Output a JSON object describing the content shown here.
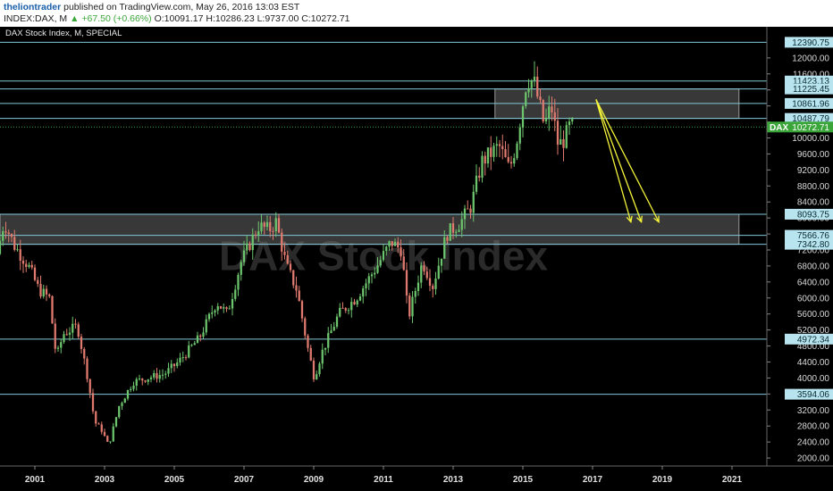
{
  "header": {
    "author": "theliontrader",
    "published_text": "published on TradingView.com, May 26, 2016 13:03 EST",
    "symbol_text": "INDEX:DAX, M",
    "change_text": "▲ +67.50 (+0.66%)",
    "ohlc_text": "O:10091.17 H:10286.23 L:9737.00 C:10272.71"
  },
  "chart_title": "DAX Stock Index, M, SPECIAL",
  "watermark": "DAX Stock Index",
  "colors": {
    "up": "#6cc46c",
    "down": "#e07a6e",
    "level_line": "#7fc7d6",
    "label_bg": "#b7e4ee",
    "zone_fill": "#7c7c7c",
    "current_bg": "#3aa63a",
    "arrow": "#f5f53a"
  },
  "chart_data": {
    "type": "candlestick",
    "title": "DAX Stock Index, M, SPECIAL",
    "x_range": [
      2000.0,
      2022.0
    ],
    "ylim": [
      1800,
      12600
    ],
    "y_ticks": [
      2000,
      2400,
      2800,
      3200,
      3600,
      4000,
      4400,
      4800,
      5200,
      5600,
      6000,
      6400,
      6800,
      7200,
      7600,
      8000,
      8400,
      8800,
      9200,
      9600,
      10000,
      10400,
      10800,
      11200,
      11600,
      12000
    ],
    "x_ticks": [
      {
        "value": 2001,
        "label": "2001"
      },
      {
        "value": 2003,
        "label": "2003"
      },
      {
        "value": 2005,
        "label": "2005"
      },
      {
        "value": 2007,
        "label": "2007"
      },
      {
        "value": 2009,
        "label": "2009"
      },
      {
        "value": 2011,
        "label": "2011"
      },
      {
        "value": 2013,
        "label": "2013"
      },
      {
        "value": 2015,
        "label": "2015"
      },
      {
        "value": 2017,
        "label": "2017"
      },
      {
        "value": 2019,
        "label": "2019"
      },
      {
        "value": 2021,
        "label": "2021"
      }
    ],
    "waypoints": [
      [
        2000.0,
        7100
      ],
      [
        2000.2,
        7900
      ],
      [
        2000.5,
        7300
      ],
      [
        2000.9,
        6800
      ],
      [
        2001.2,
        6200
      ],
      [
        2001.5,
        6000
      ],
      [
        2001.7,
        4500
      ],
      [
        2001.9,
        5100
      ],
      [
        2002.3,
        5300
      ],
      [
        2002.6,
        4000
      ],
      [
        2002.8,
        2900
      ],
      [
        2003.0,
        2700
      ],
      [
        2003.2,
        2300
      ],
      [
        2003.5,
        3300
      ],
      [
        2003.9,
        3900
      ],
      [
        2004.3,
        4000
      ],
      [
        2004.8,
        4100
      ],
      [
        2005.2,
        4400
      ],
      [
        2005.8,
        5000
      ],
      [
        2006.3,
        5900
      ],
      [
        2006.6,
        5600
      ],
      [
        2007.0,
        6900
      ],
      [
        2007.5,
        7800
      ],
      [
        2007.8,
        7700
      ],
      [
        2008.0,
        7900
      ],
      [
        2008.3,
        6800
      ],
      [
        2008.6,
        6200
      ],
      [
        2008.9,
        4800
      ],
      [
        2009.1,
        4000
      ],
      [
        2009.3,
        4600
      ],
      [
        2009.8,
        5600
      ],
      [
        2010.3,
        6000
      ],
      [
        2010.9,
        6800
      ],
      [
        2011.3,
        7400
      ],
      [
        2011.6,
        7200
      ],
      [
        2011.8,
        5500
      ],
      [
        2012.2,
        6900
      ],
      [
        2012.5,
        6300
      ],
      [
        2012.9,
        7600
      ],
      [
        2013.3,
        7900
      ],
      [
        2013.6,
        8300
      ],
      [
        2013.9,
        9400
      ],
      [
        2014.4,
        9800
      ],
      [
        2014.7,
        9200
      ],
      [
        2014.9,
        9900
      ],
      [
        2015.2,
        11500
      ],
      [
        2015.4,
        11400
      ],
      [
        2015.7,
        10300
      ],
      [
        2015.9,
        10800
      ],
      [
        2016.1,
        9800
      ],
      [
        2016.3,
        10000
      ],
      [
        2016.42,
        10272.71
      ]
    ],
    "levels": [
      {
        "value": 12390.75,
        "label": "12390.75"
      },
      {
        "value": 11423.13,
        "label": "11423.13"
      },
      {
        "value": 11225.45,
        "label": "11225.45"
      },
      {
        "value": 10861.96,
        "label": "10861.96"
      },
      {
        "value": 10487.79,
        "label": "10487.79"
      },
      {
        "value": 8093.75,
        "label": "8093.75"
      },
      {
        "value": 7566.76,
        "label": "7566.76"
      },
      {
        "value": 7342.8,
        "label": "7342.80"
      },
      {
        "value": 4972.34,
        "label": "4972.34"
      },
      {
        "value": 3594.06,
        "label": "3594.06"
      }
    ],
    "zones": [
      {
        "x_start": 2014.2,
        "x_end": 2021.2,
        "y_low": 10487.79,
        "y_high": 11225.45
      },
      {
        "x_start": 2000.0,
        "x_end": 2021.2,
        "y_low": 7342.8,
        "y_high": 8093.75
      }
    ],
    "current_price": {
      "symbol": "DAX",
      "value": 10272.71,
      "label": "10272.71"
    },
    "arrows": [
      {
        "from": [
          2017.1,
          10961
        ],
        "to": [
          2018.1,
          7900
        ]
      },
      {
        "from": [
          2017.1,
          10961
        ],
        "to": [
          2018.4,
          7900
        ]
      },
      {
        "from": [
          2017.1,
          10961
        ],
        "to": [
          2018.9,
          7900
        ]
      }
    ]
  }
}
